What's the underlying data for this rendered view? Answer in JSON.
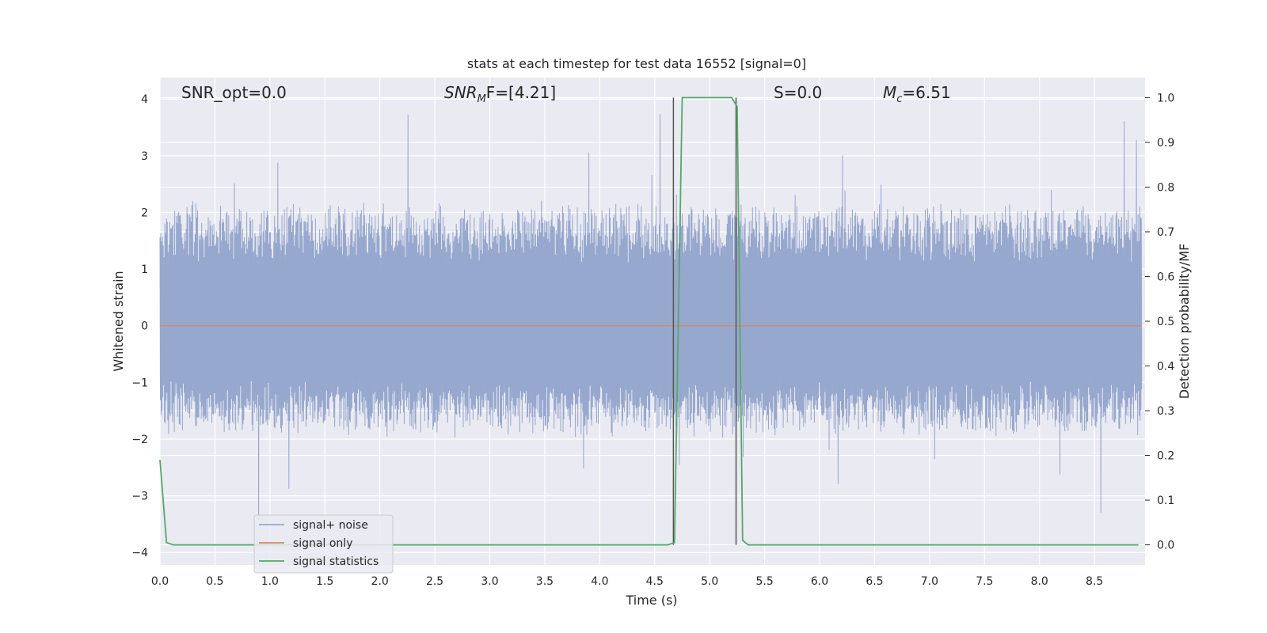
{
  "chart_data": {
    "type": "line",
    "title": "stats at each timestep for test data 16552 [signal=0]",
    "xlabel": "Time (s)",
    "ylabel": "Whitened strain",
    "ylabel_right": "Detection probability/MF",
    "xlim": [
      0.0,
      8.96
    ],
    "ylim": [
      -4.22,
      4.38
    ],
    "ylim_right": [
      -0.045,
      1.045
    ],
    "x_ticks": [
      "0.0",
      "0.5",
      "1.0",
      "1.5",
      "2.0",
      "2.5",
      "3.0",
      "3.5",
      "4.0",
      "4.5",
      "5.0",
      "5.5",
      "6.0",
      "6.5",
      "7.0",
      "7.5",
      "8.0",
      "8.5"
    ],
    "y_ticks": [
      "−4",
      "−3",
      "−2",
      "−1",
      "0",
      "1",
      "2",
      "3",
      "4"
    ],
    "y_ticks_right": [
      "0.0",
      "0.1",
      "0.2",
      "0.3",
      "0.4",
      "0.5",
      "0.6",
      "0.7",
      "0.8",
      "0.9",
      "1.0"
    ],
    "grid": true,
    "legend_position": "lower-left",
    "annotations": [
      {
        "id": "snr-opt",
        "text": "SNR_opt=0.0"
      },
      {
        "id": "snr-mf",
        "text": "SNR",
        "sub": "M",
        "tail": "F=[4.21]"
      },
      {
        "id": "s-value",
        "text": "S=0.0"
      },
      {
        "id": "mc-value",
        "text": "M",
        "sub": "c",
        "tail": "=6.51"
      }
    ],
    "series": [
      {
        "name": "signal+ noise",
        "color": "#97a8ce",
        "kind": "noise",
        "typical_range": [
          -1.6,
          1.8
        ],
        "max_peak": 4.0,
        "min_peak": -3.75
      },
      {
        "name": "signal only",
        "color": "#dd8452",
        "kind": "constant",
        "value": 0.0
      },
      {
        "name": "signal statistics",
        "color": "#55a868",
        "axis": "right",
        "x": [
          0.0,
          0.06,
          0.12,
          0.5,
          1.0,
          2.0,
          3.0,
          4.0,
          4.5,
          4.62,
          4.68,
          4.75,
          4.8,
          5.0,
          5.2,
          5.25,
          5.3,
          5.35,
          5.5,
          6.0,
          7.0,
          8.0,
          8.9
        ],
        "values": [
          0.19,
          0.005,
          0.0,
          0.0,
          0.0,
          0.0,
          0.0,
          0.0,
          0.0,
          0.0,
          0.005,
          1.0,
          1.0,
          1.0,
          1.0,
          0.98,
          0.01,
          0.0,
          0.0,
          0.0,
          0.0,
          0.0,
          0.0
        ]
      }
    ],
    "vertical_markers": {
      "color": "#555555",
      "x": [
        4.67,
        5.24
      ],
      "range_right": [
        0.0,
        1.0
      ]
    }
  }
}
